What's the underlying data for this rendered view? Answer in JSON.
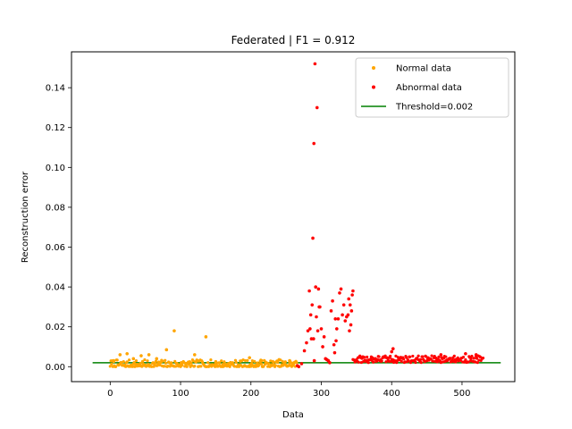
{
  "chart_data": {
    "type": "scatter",
    "title": "Federated | F1 = 0.912",
    "xlabel": "Data",
    "ylabel": "Reconstruction error",
    "xlim": [
      -55,
      575
    ],
    "ylim": [
      -0.0075,
      0.158
    ],
    "x_ticks": [
      0,
      100,
      200,
      300,
      400,
      500
    ],
    "x_tick_labels": [
      "0",
      "100",
      "200",
      "300",
      "400",
      "500"
    ],
    "y_ticks": [
      0.0,
      0.02,
      0.04,
      0.06,
      0.08,
      0.1,
      0.12,
      0.14
    ],
    "y_tick_labels": [
      "0.00",
      "0.02",
      "0.04",
      "0.06",
      "0.08",
      "0.10",
      "0.12",
      "0.14"
    ],
    "grid": false,
    "legend_position": "top-right",
    "series": [
      {
        "name": "Normal data",
        "color": "#ffa500",
        "marker": "dot",
        "x_range": [
          0,
          265
        ],
        "typical_range": [
          0.0,
          0.0035
        ],
        "outliers": [
          {
            "x": 5,
            "y": 0.003
          },
          {
            "x": 14,
            "y": 0.006
          },
          {
            "x": 24,
            "y": 0.0065
          },
          {
            "x": 33,
            "y": 0.004
          },
          {
            "x": 44,
            "y": 0.0055
          },
          {
            "x": 55,
            "y": 0.006
          },
          {
            "x": 66,
            "y": 0.004
          },
          {
            "x": 80,
            "y": 0.0085
          },
          {
            "x": 91,
            "y": 0.018
          },
          {
            "x": 101,
            "y": 0.002
          },
          {
            "x": 120,
            "y": 0.006
          },
          {
            "x": 136,
            "y": 0.015
          },
          {
            "x": 150,
            "y": 0.0025
          },
          {
            "x": 185,
            "y": 0.0028
          },
          {
            "x": 198,
            "y": 0.0045
          },
          {
            "x": 215,
            "y": 0.003
          },
          {
            "x": 240,
            "y": 0.0035
          },
          {
            "x": 255,
            "y": 0.003
          }
        ]
      },
      {
        "name": "Abnormal data",
        "color": "#ff0000",
        "marker": "dot",
        "x_range": [
          265,
          530
        ],
        "points": [
          {
            "x": 266,
            "y": 0.0005
          },
          {
            "x": 268,
            "y": 0.0
          },
          {
            "x": 272,
            "y": 0.0015
          },
          {
            "x": 276,
            "y": 0.008
          },
          {
            "x": 279,
            "y": 0.012
          },
          {
            "x": 281,
            "y": 0.018
          },
          {
            "x": 283,
            "y": 0.038
          },
          {
            "x": 284,
            "y": 0.019
          },
          {
            "x": 285,
            "y": 0.026
          },
          {
            "x": 286,
            "y": 0.014
          },
          {
            "x": 287,
            "y": 0.031
          },
          {
            "x": 288,
            "y": 0.0645
          },
          {
            "x": 289,
            "y": 0.014
          },
          {
            "x": 289.5,
            "y": 0.112
          },
          {
            "x": 290,
            "y": 0.003
          },
          {
            "x": 291,
            "y": 0.152
          },
          {
            "x": 292,
            "y": 0.04
          },
          {
            "x": 293,
            "y": 0.025
          },
          {
            "x": 294,
            "y": 0.13
          },
          {
            "x": 295,
            "y": 0.018
          },
          {
            "x": 296,
            "y": 0.039
          },
          {
            "x": 297,
            "y": 0.03
          },
          {
            "x": 298,
            "y": 0.03
          },
          {
            "x": 300,
            "y": 0.019
          },
          {
            "x": 302,
            "y": 0.01
          },
          {
            "x": 304,
            "y": 0.015
          },
          {
            "x": 306,
            "y": 0.004
          },
          {
            "x": 308,
            "y": 0.0035
          },
          {
            "x": 310,
            "y": 0.003
          },
          {
            "x": 312,
            "y": 0.002
          },
          {
            "x": 314,
            "y": 0.028
          },
          {
            "x": 316,
            "y": 0.033
          },
          {
            "x": 318,
            "y": 0.011
          },
          {
            "x": 319,
            "y": 0.007
          },
          {
            "x": 320,
            "y": 0.024
          },
          {
            "x": 321,
            "y": 0.013
          },
          {
            "x": 322,
            "y": 0.019
          },
          {
            "x": 324,
            "y": 0.024
          },
          {
            "x": 326,
            "y": 0.037
          },
          {
            "x": 328,
            "y": 0.039
          },
          {
            "x": 330,
            "y": 0.026
          },
          {
            "x": 332,
            "y": 0.031
          },
          {
            "x": 334,
            "y": 0.023
          },
          {
            "x": 336,
            "y": 0.025
          },
          {
            "x": 338,
            "y": 0.026
          },
          {
            "x": 339,
            "y": 0.034
          },
          {
            "x": 340,
            "y": 0.018
          },
          {
            "x": 341,
            "y": 0.031
          },
          {
            "x": 342,
            "y": 0.021
          },
          {
            "x": 343,
            "y": 0.028
          },
          {
            "x": 344,
            "y": 0.036
          },
          {
            "x": 345,
            "y": 0.038
          }
        ],
        "band": {
          "x_range": [
            345,
            530
          ],
          "typical_range": [
            0.002,
            0.0055
          ]
        },
        "band_outliers": [
          {
            "x": 400,
            "y": 0.0075
          },
          {
            "x": 402,
            "y": 0.009
          },
          {
            "x": 470,
            "y": 0.006
          },
          {
            "x": 505,
            "y": 0.0065
          },
          {
            "x": 520,
            "y": 0.006
          }
        ]
      },
      {
        "name": "Threshold=0.002",
        "color": "#008000",
        "type": "line",
        "x": [
          -25,
          555
        ],
        "y": [
          0.002,
          0.002
        ]
      }
    ]
  }
}
